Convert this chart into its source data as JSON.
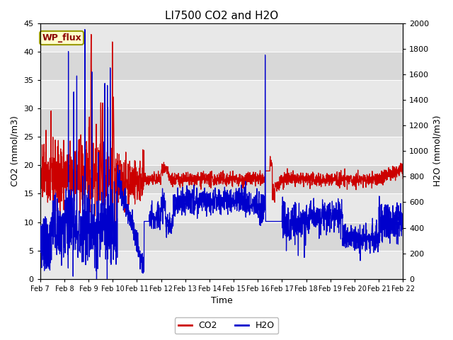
{
  "title": "LI7500 CO2 and H2O",
  "xlabel": "Time",
  "ylabel_left": "CO2 (mmol/m3)",
  "ylabel_right": "H2O (mmol/m3)",
  "ylim_left": [
    0,
    45
  ],
  "ylim_right": [
    0,
    2000
  ],
  "yticks_left": [
    0,
    5,
    10,
    15,
    20,
    25,
    30,
    35,
    40,
    45
  ],
  "yticks_right": [
    0,
    200,
    400,
    600,
    800,
    1000,
    1200,
    1400,
    1600,
    1800,
    2000
  ],
  "xtick_labels": [
    "Feb 7",
    "Feb 8",
    "Feb 9",
    "Feb 10",
    "Feb 11",
    "Feb 12",
    "Feb 13",
    "Feb 14",
    "Feb 15",
    "Feb 16",
    "Feb 17",
    "Feb 18",
    "Feb 19",
    "Feb 20",
    "Feb 21",
    "Feb 22"
  ],
  "co2_color": "#cc0000",
  "h2o_color": "#0000cc",
  "fig_bg_color": "#ffffff",
  "plot_bg_color": "#e8e8e8",
  "band_light": "#e8e8e8",
  "band_dark": "#d8d8d8",
  "annotation_text": "WP_flux",
  "annotation_bg": "#ffffcc",
  "annotation_border": "#999900",
  "legend_co2": "CO2",
  "legend_h2o": "H2O",
  "title_fontsize": 11,
  "axis_fontsize": 9,
  "tick_fontsize": 8,
  "linewidth": 0.9
}
